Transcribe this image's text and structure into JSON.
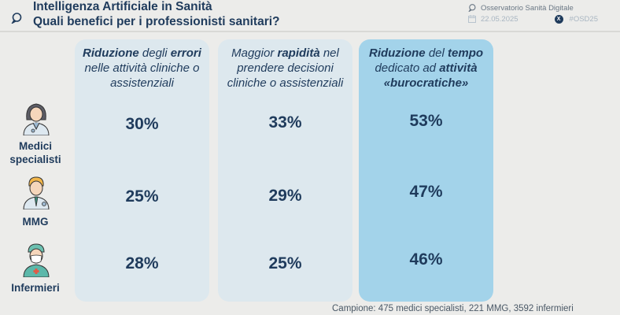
{
  "header": {
    "logo_icon": "chat-bubble-icon",
    "title_line1": "Intelligenza Artificiale in Sanità",
    "title_line2": "Quali benefici per i professionisti sanitari?",
    "source": "Osservatorio Sanità Digitale",
    "date": "22.05.2025",
    "hashtag": "#OSD25",
    "social_icon": "x-icon",
    "social_glyph": "X"
  },
  "columns": [
    {
      "heading_parts": [
        {
          "text": "Riduzione",
          "bold": true
        },
        {
          "text": " degli ",
          "bold": false
        },
        {
          "text": "errori",
          "bold": true
        },
        {
          "text": " nelle attività cliniche o assistenziali",
          "bold": false
        }
      ],
      "highlight": false
    },
    {
      "heading_parts": [
        {
          "text": "Maggior ",
          "bold": false
        },
        {
          "text": "rapidità",
          "bold": true
        },
        {
          "text": " nel prendere decisioni cliniche o assistenziali",
          "bold": false
        }
      ],
      "highlight": false
    },
    {
      "heading_parts": [
        {
          "text": "Riduzione",
          "bold": true
        },
        {
          "text": " del ",
          "bold": false
        },
        {
          "text": "tempo",
          "bold": true
        },
        {
          "text": " dedicato ad ",
          "bold": false
        },
        {
          "text": "attività «burocratiche»",
          "bold": true
        }
      ],
      "highlight": true
    }
  ],
  "rows": [
    {
      "label": "Medici specialisti",
      "icon": "female-doctor-icon",
      "values": [
        "30%",
        "33%",
        "53%"
      ]
    },
    {
      "label": "MMG",
      "icon": "male-doctor-icon",
      "values": [
        "25%",
        "29%",
        "47%"
      ]
    },
    {
      "label": "Infermieri",
      "icon": "nurse-icon",
      "values": [
        "28%",
        "25%",
        "46%"
      ]
    }
  ],
  "footer": {
    "sample": "Campione: 475 medici specialisti, 221 MMG, 3592 infermieri"
  },
  "colors": {
    "text": "#1f3b5c",
    "column_bg": "#dde8ee",
    "column_highlight_bg": "#a3d3ea",
    "page_bg": "#ececea"
  }
}
